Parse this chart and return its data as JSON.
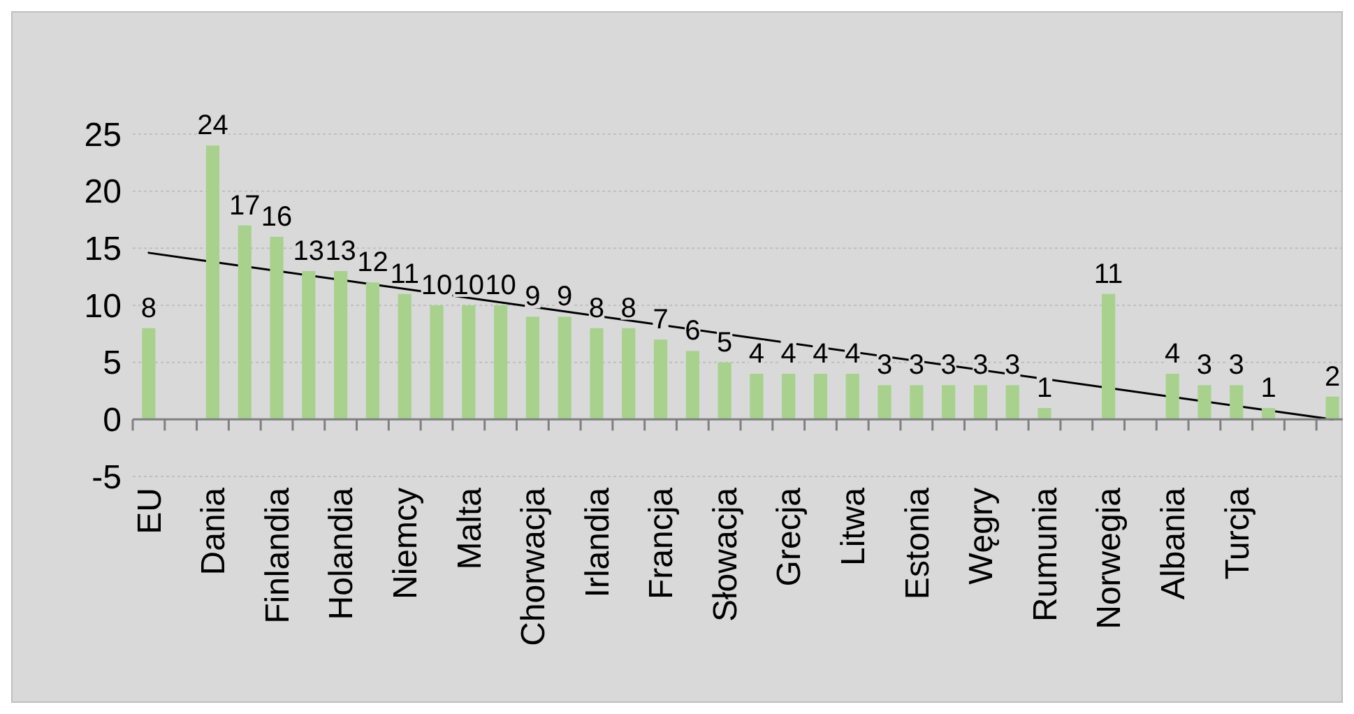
{
  "chart_data": {
    "type": "bar",
    "categories": [
      "EU",
      null,
      "Dania",
      null,
      "Finlandia",
      null,
      "Holandia",
      null,
      "Niemcy",
      null,
      "Malta",
      null,
      "Chorwacja",
      null,
      "Irlandia",
      null,
      "Francja",
      null,
      "Słowacja",
      null,
      "Grecja",
      null,
      "Litwa",
      null,
      "Estonia",
      null,
      "Węgry",
      null,
      "Rumunia",
      null,
      "Norwegia",
      null,
      "Albania",
      null,
      "Turcja",
      null,
      null,
      null
    ],
    "series": [
      {
        "color": "#a9d18e",
        "values": [
          8,
          null,
          24,
          17,
          16,
          13,
          13,
          12,
          11,
          10,
          10,
          10,
          9,
          9,
          8,
          8,
          7,
          6,
          5,
          4,
          4,
          4,
          4,
          3,
          3,
          3,
          3,
          3,
          1,
          null,
          11,
          null,
          4,
          3,
          3,
          1,
          null,
          2
        ],
        "value_labels": [
          "8",
          null,
          "24",
          "17",
          "16",
          "13",
          "13",
          "12",
          "11",
          "10",
          "10",
          "10",
          "9",
          "9",
          "8",
          "8",
          "7",
          "6",
          "5",
          "4",
          "4",
          "4",
          "4",
          "3",
          "3",
          "3",
          "3",
          "3",
          "1",
          null,
          "11",
          null,
          "4",
          "3",
          "3",
          "1",
          null,
          "2"
        ]
      },
      {
        "type": "line",
        "color": "#000000",
        "values": [
          14.6,
          null,
          null,
          null,
          null,
          null,
          null,
          null,
          null,
          null,
          null,
          null,
          null,
          null,
          null,
          null,
          null,
          null,
          null,
          null,
          null,
          null,
          null,
          null,
          null,
          null,
          null,
          null,
          null,
          null,
          null,
          null,
          null,
          null,
          null,
          null,
          null,
          0
        ]
      }
    ],
    "ylim": [
      -5,
      25
    ],
    "yticks": [
      -5,
      0,
      5,
      10,
      15,
      20,
      25
    ],
    "grid": "y"
  }
}
